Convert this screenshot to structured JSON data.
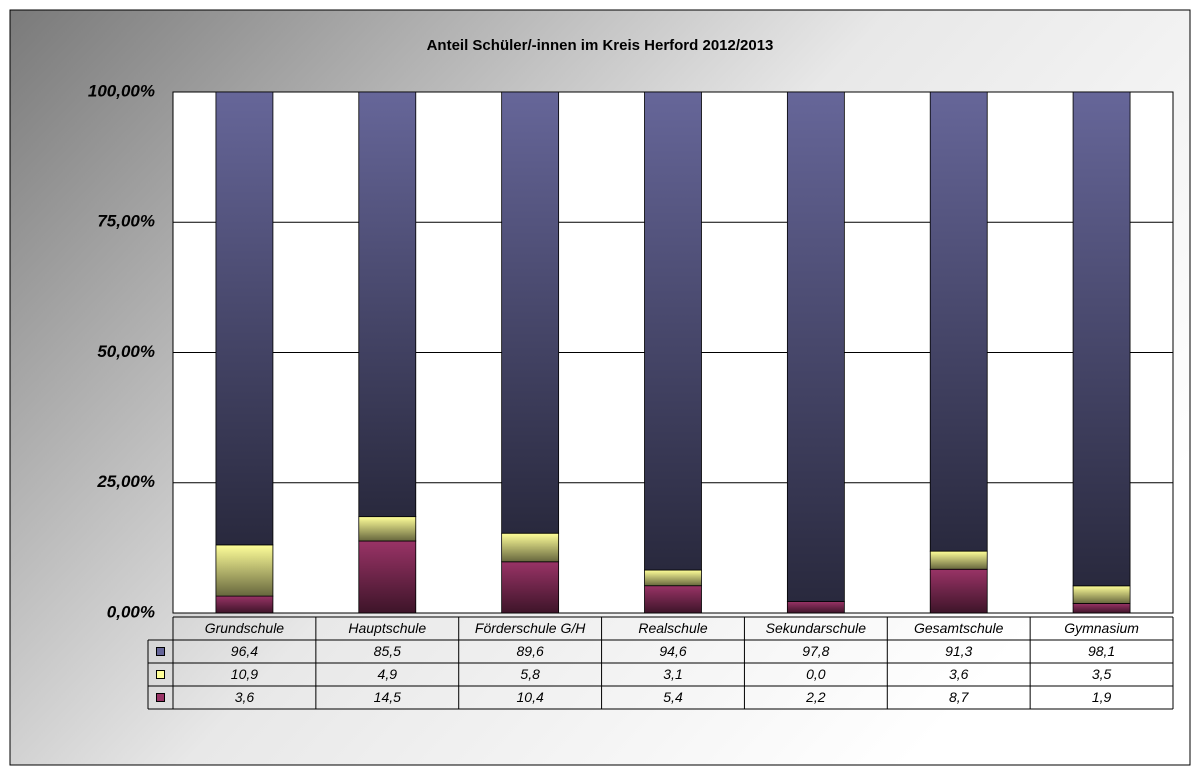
{
  "chart_data": {
    "type": "bar",
    "stacking": "percent",
    "title": "Anteil Schüler/-innen im Kreis Herford 2012/2013",
    "categories": [
      "Grundschule",
      "Hauptschule",
      "Förderschule G/H",
      "Realschule",
      "Sekundarschule",
      "Gesamtschule",
      "Gymnasium"
    ],
    "series": [
      {
        "color": "#666699",
        "values": [
          96.4,
          85.5,
          89.6,
          94.6,
          97.8,
          91.3,
          98.1
        ],
        "value_labels": [
          "96,4",
          "85,5",
          "89,6",
          "94,6",
          "97,8",
          "91,3",
          "98,1"
        ]
      },
      {
        "color": "#ffff99",
        "values": [
          10.9,
          4.9,
          5.8,
          3.1,
          0.0,
          3.6,
          3.5
        ],
        "value_labels": [
          "10,9",
          "4,9",
          "5,8",
          "3,1",
          "0,0",
          "3,6",
          "3,5"
        ]
      },
      {
        "color": "#993366",
        "values": [
          3.6,
          14.5,
          10.4,
          5.4,
          2.2,
          8.7,
          1.9
        ],
        "value_labels": [
          "3,6",
          "14,5",
          "10,4",
          "5,4",
          "2,2",
          "8,7",
          "1,9"
        ]
      }
    ],
    "ylim": [
      0,
      100
    ],
    "yticks": [
      {
        "value": 0,
        "label": "0,00%"
      },
      {
        "value": 25,
        "label": "25,00%"
      },
      {
        "value": 50,
        "label": "50,00%"
      },
      {
        "value": 75,
        "label": "75,00%"
      },
      {
        "value": 100,
        "label": "100,00%"
      }
    ],
    "grid": true,
    "data_table": true
  }
}
